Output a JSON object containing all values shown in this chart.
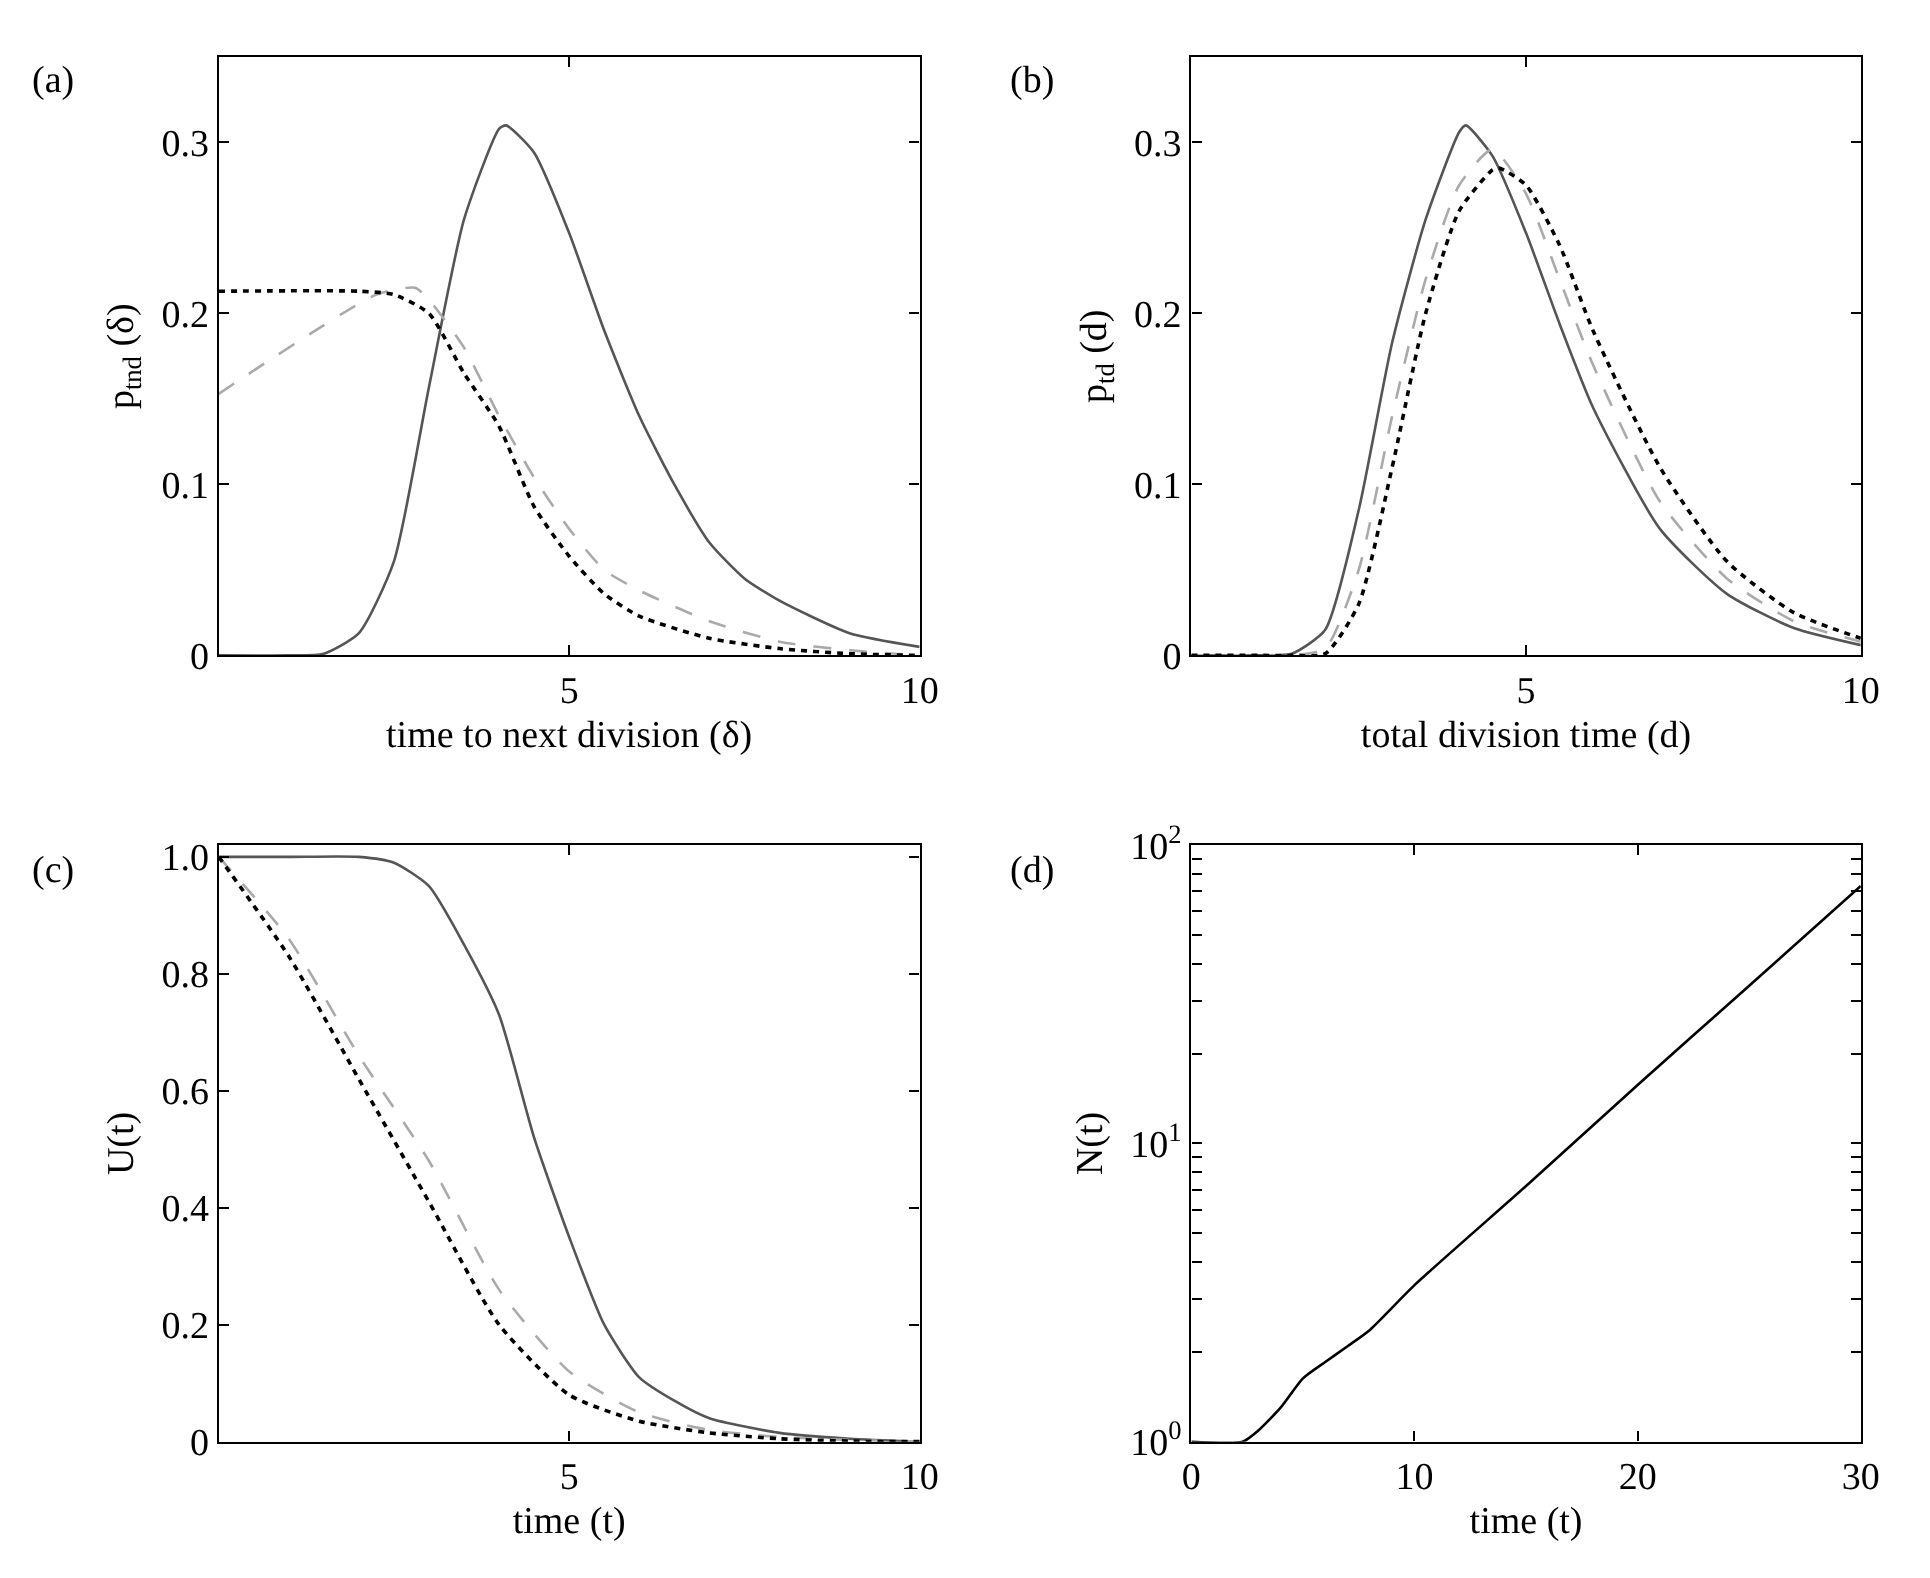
{
  "chart_data": [
    {
      "type": "line",
      "annotations": [
        "(a)"
      ],
      "xlabel": "time to next division (δ)",
      "ylabel": "p$_{tnd}$ (δ)",
      "xlim": [
        0,
        10
      ],
      "ylim": [
        0,
        0.35
      ],
      "xticks": [
        5,
        10
      ],
      "yticks": [
        0,
        0.1,
        0.2,
        0.3
      ],
      "series": [
        {
          "color": "#555555",
          "line_style": "solid",
          "x": [
            0,
            1,
            1.5,
            2,
            2.5,
            3,
            3.5,
            4,
            4.1,
            4.5,
            5,
            5.5,
            6,
            6.5,
            7,
            7.5,
            8,
            9,
            10
          ],
          "values": [
            0,
            0,
            0.001,
            0.013,
            0.055,
            0.157,
            0.255,
            0.308,
            0.31,
            0.294,
            0.247,
            0.19,
            0.14,
            0.1,
            0.066,
            0.045,
            0.032,
            0.013,
            0.005
          ]
        },
        {
          "color": "#aaaaaa",
          "line_style": "dashed",
          "x": [
            0,
            2.25,
            2.8,
            3,
            3.5,
            4,
            4.5,
            5,
            5.5,
            6,
            7,
            8,
            9,
            10
          ],
          "values": [
            0.153,
            0.211,
            0.215,
            0.208,
            0.18,
            0.14,
            0.104,
            0.074,
            0.05,
            0.038,
            0.02,
            0.008,
            0.003,
            0
          ]
        },
        {
          "color": "#000000",
          "line_style": "dotted",
          "x": [
            0,
            2,
            2.5,
            3,
            3.5,
            4,
            4.5,
            5,
            5.5,
            6,
            7,
            8,
            9,
            10
          ],
          "values": [
            0.213,
            0.213,
            0.211,
            0.2,
            0.165,
            0.134,
            0.087,
            0.058,
            0.036,
            0.023,
            0.01,
            0.004,
            0.001,
            0
          ]
        }
      ]
    },
    {
      "type": "line",
      "annotations": [
        "(b)"
      ],
      "xlabel": "total division time (d)",
      "ylabel": "p$_{td}$ (d)",
      "xlim": [
        0,
        10
      ],
      "ylim": [
        0,
        0.35
      ],
      "xticks": [
        5,
        10
      ],
      "yticks": [
        0,
        0.1,
        0.2,
        0.3
      ],
      "series": [
        {
          "color": "#555555",
          "line_style": "solid",
          "x": [
            0,
            1,
            1.5,
            2,
            2.5,
            3,
            3.5,
            4,
            4.1,
            4.5,
            5,
            5.5,
            6,
            7,
            8,
            9,
            10
          ],
          "values": [
            0,
            0,
            0.001,
            0.015,
            0.085,
            0.183,
            0.255,
            0.306,
            0.31,
            0.292,
            0.247,
            0.194,
            0.145,
            0.074,
            0.036,
            0.016,
            0.006
          ]
        },
        {
          "color": "#aaaaaa",
          "line_style": "dashed",
          "x": [
            0,
            1,
            1.5,
            2,
            2.5,
            3,
            3.5,
            4,
            4.5,
            5,
            5.5,
            6,
            7,
            8,
            9,
            10
          ],
          "values": [
            0,
            0,
            0,
            0.004,
            0.05,
            0.14,
            0.22,
            0.275,
            0.296,
            0.27,
            0.22,
            0.17,
            0.09,
            0.045,
            0.02,
            0.008
          ]
        },
        {
          "color": "#000000",
          "line_style": "dotted",
          "x": [
            0,
            1,
            1.5,
            2,
            2.5,
            3,
            3.5,
            4,
            4.5,
            4.6,
            5,
            5.5,
            6,
            7,
            8,
            9,
            10
          ],
          "values": [
            0,
            0,
            0,
            0.001,
            0.03,
            0.11,
            0.2,
            0.26,
            0.284,
            0.285,
            0.275,
            0.24,
            0.19,
            0.11,
            0.055,
            0.025,
            0.01
          ]
        }
      ]
    },
    {
      "type": "line",
      "annotations": [
        "(c)"
      ],
      "xlabel": "time (t)",
      "ylabel": "U(t)",
      "xlim": [
        0,
        10
      ],
      "ylim": [
        0,
        1.02
      ],
      "xticks": [
        5,
        10
      ],
      "yticks": [
        0,
        0.2,
        0.4,
        0.6,
        0.8,
        {
          "value": 1,
          "label": "1.0"
        }
      ],
      "series": [
        {
          "color": "#555555",
          "line_style": "solid",
          "x": [
            0,
            1,
            2,
            2.5,
            3,
            3.5,
            4,
            4.5,
            5,
            5.5,
            6,
            6.5,
            7,
            8,
            9,
            10
          ],
          "values": [
            1,
            1,
            1,
            0.99,
            0.95,
            0.85,
            0.73,
            0.52,
            0.35,
            0.2,
            0.11,
            0.07,
            0.04,
            0.015,
            0.005,
            0
          ]
        },
        {
          "color": "#aaaaaa",
          "line_style": "dashed",
          "x": [
            0,
            1,
            2,
            3,
            4,
            5,
            6,
            7,
            8,
            9,
            10
          ],
          "values": [
            1,
            0.86,
            0.66,
            0.48,
            0.26,
            0.12,
            0.05,
            0.02,
            0.008,
            0.003,
            0
          ]
        },
        {
          "color": "#000000",
          "line_style": "dotted",
          "x": [
            0,
            1,
            2,
            3,
            4,
            5,
            6,
            7,
            8,
            9,
            10
          ],
          "values": [
            1,
            0.83,
            0.62,
            0.41,
            0.2,
            0.08,
            0.035,
            0.015,
            0.005,
            0.001,
            0
          ]
        }
      ]
    },
    {
      "type": "line",
      "annotations": [
        "(d)"
      ],
      "xlabel": "time (t)",
      "ylabel": "N(t)",
      "log": "y",
      "xlim": [
        0,
        30
      ],
      "ylim": [
        1,
        100
      ],
      "xticks": [
        0,
        10,
        20,
        30
      ],
      "yticks": [
        {
          "value": 1,
          "label": "10$^{0}$"
        },
        {
          "value": 2,
          "label": null
        },
        {
          "value": 3,
          "label": null
        },
        {
          "value": 4,
          "label": null
        },
        {
          "value": 5,
          "label": null
        },
        {
          "value": 6,
          "label": null
        },
        {
          "value": 7,
          "label": null
        },
        {
          "value": 8,
          "label": null
        },
        {
          "value": 9,
          "label": null
        },
        {
          "value": 10,
          "label": "10$^{1}$"
        },
        {
          "value": 20,
          "label": null
        },
        {
          "value": 30,
          "label": null
        },
        {
          "value": 40,
          "label": null
        },
        {
          "value": 50,
          "label": null
        },
        {
          "value": 60,
          "label": null
        },
        {
          "value": 70,
          "label": null
        },
        {
          "value": 80,
          "label": null
        },
        {
          "value": 90,
          "label": null
        },
        {
          "value": 100,
          "label": "10$^{2}$"
        }
      ],
      "series": [
        {
          "color": "#000000",
          "line_style": "solid",
          "x": [
            0,
            2.3,
            3,
            4,
            5,
            6,
            7,
            8,
            10,
            15,
            20,
            25,
            30
          ],
          "values": [
            1,
            1,
            1.09,
            1.3,
            1.63,
            1.85,
            2.09,
            2.37,
            3.35,
            7.2,
            15.7,
            33.8,
            73
          ]
        }
      ]
    }
  ]
}
